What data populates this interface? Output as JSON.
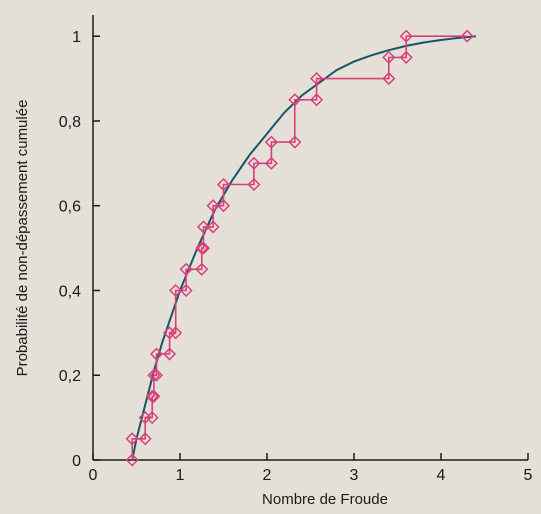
{
  "chart_data": {
    "type": "line",
    "title": "",
    "xlabel": "Nombre de Froude",
    "ylabel": "Probabilité de non-dépassement cumulée",
    "xlim": [
      0,
      5
    ],
    "ylim": [
      0,
      1.05
    ],
    "x_ticks": [
      0,
      1,
      2,
      3,
      4,
      5
    ],
    "x_tick_labels": [
      "0",
      "1",
      "2",
      "3",
      "4",
      "5"
    ],
    "y_ticks": [
      0,
      0.2,
      0.4,
      0.6,
      0.8,
      1
    ],
    "y_tick_labels": [
      "0",
      "0,2",
      "0,4",
      "0,6",
      "0,8",
      "1"
    ],
    "grid": false,
    "legend": "none",
    "colors": {
      "background": "#e4e0d7",
      "empirical": "#d9407a",
      "fitted": "#17556b",
      "axis": "#1a1a1a"
    },
    "series": [
      {
        "kind": "empirical-step",
        "marker": "diamond",
        "color": "#d9407a",
        "points": [
          {
            "x": 0.45,
            "y": 0.0
          },
          {
            "x": 0.45,
            "y": 0.05
          },
          {
            "x": 0.6,
            "y": 0.05
          },
          {
            "x": 0.6,
            "y": 0.1
          },
          {
            "x": 0.68,
            "y": 0.1
          },
          {
            "x": 0.68,
            "y": 0.15
          },
          {
            "x": 0.7,
            "y": 0.15
          },
          {
            "x": 0.7,
            "y": 0.2
          },
          {
            "x": 0.73,
            "y": 0.2
          },
          {
            "x": 0.73,
            "y": 0.25
          },
          {
            "x": 0.88,
            "y": 0.25
          },
          {
            "x": 0.88,
            "y": 0.3
          },
          {
            "x": 0.95,
            "y": 0.3
          },
          {
            "x": 0.95,
            "y": 0.4
          },
          {
            "x": 1.07,
            "y": 0.4
          },
          {
            "x": 1.07,
            "y": 0.45
          },
          {
            "x": 1.25,
            "y": 0.45
          },
          {
            "x": 1.25,
            "y": 0.5
          },
          {
            "x": 1.27,
            "y": 0.5
          },
          {
            "x": 1.27,
            "y": 0.55
          },
          {
            "x": 1.38,
            "y": 0.55
          },
          {
            "x": 1.38,
            "y": 0.6
          },
          {
            "x": 1.5,
            "y": 0.6
          },
          {
            "x": 1.5,
            "y": 0.65
          },
          {
            "x": 1.85,
            "y": 0.65
          },
          {
            "x": 1.85,
            "y": 0.7
          },
          {
            "x": 2.05,
            "y": 0.7
          },
          {
            "x": 2.05,
            "y": 0.75
          },
          {
            "x": 2.32,
            "y": 0.75
          },
          {
            "x": 2.32,
            "y": 0.85
          },
          {
            "x": 2.57,
            "y": 0.85
          },
          {
            "x": 2.57,
            "y": 0.9
          },
          {
            "x": 3.4,
            "y": 0.9
          },
          {
            "x": 3.4,
            "y": 0.95
          },
          {
            "x": 3.6,
            "y": 0.95
          },
          {
            "x": 3.6,
            "y": 1.0
          },
          {
            "x": 4.3,
            "y": 1.0
          }
        ]
      },
      {
        "kind": "fitted-curve",
        "color": "#17556b",
        "x": [
          0.45,
          0.5,
          0.6,
          0.7,
          0.8,
          0.9,
          1.0,
          1.2,
          1.4,
          1.6,
          1.8,
          2.0,
          2.2,
          2.4,
          2.6,
          2.8,
          3.0,
          3.2,
          3.4,
          3.6,
          3.8,
          4.0,
          4.2,
          4.4
        ],
        "y": [
          0.0,
          0.05,
          0.13,
          0.21,
          0.28,
          0.34,
          0.4,
          0.5,
          0.59,
          0.66,
          0.72,
          0.77,
          0.82,
          0.86,
          0.89,
          0.92,
          0.94,
          0.955,
          0.967,
          0.977,
          0.985,
          0.991,
          0.996,
          1.0
        ]
      }
    ]
  }
}
